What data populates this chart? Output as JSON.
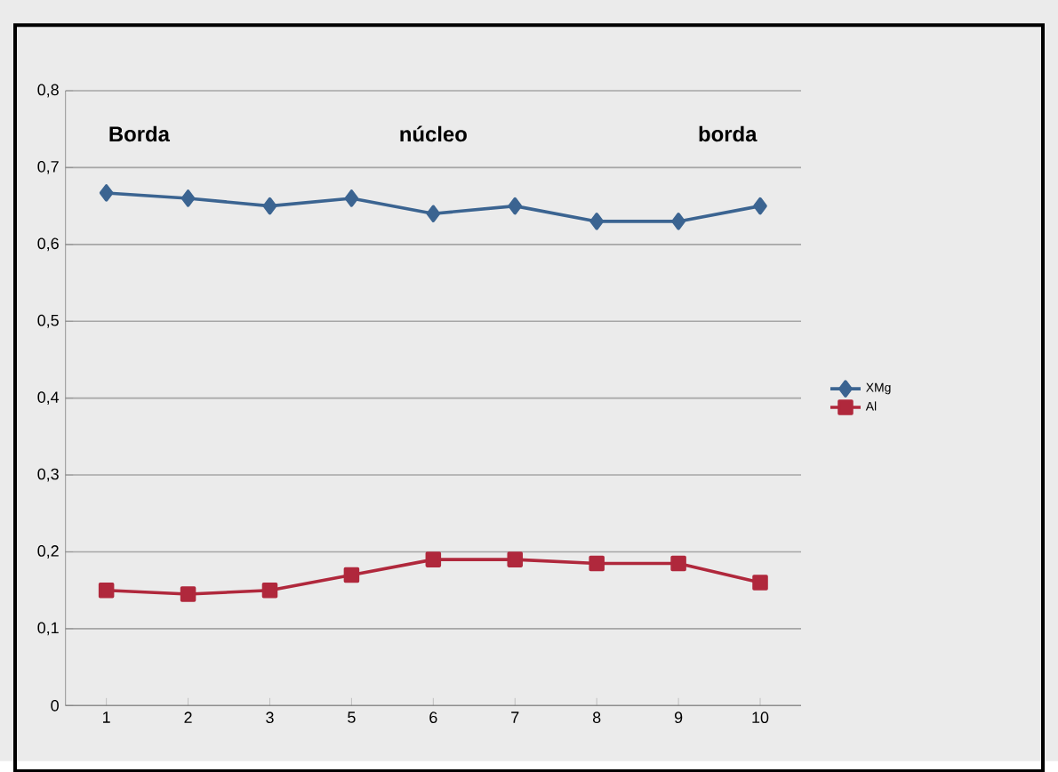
{
  "chart_data": {
    "type": "line",
    "categories": [
      "1",
      "2",
      "3",
      "5",
      "6",
      "7",
      "8",
      "9",
      "10"
    ],
    "series": [
      {
        "name": "XMg",
        "color": "#3b6491",
        "marker": "diamond",
        "values": [
          0.667,
          0.66,
          0.65,
          0.66,
          0.64,
          0.65,
          0.63,
          0.63,
          0.65
        ]
      },
      {
        "name": "Al",
        "color": "#b0283c",
        "marker": "square",
        "values": [
          0.15,
          0.145,
          0.15,
          0.17,
          0.19,
          0.19,
          0.185,
          0.185,
          0.16
        ]
      }
    ],
    "ylim": [
      0,
      0.8
    ],
    "yticks": [
      0,
      {
        "value": 0.1,
        "label": "0,1"
      },
      {
        "value": 0.2,
        "label": "0,2"
      },
      {
        "value": 0.3,
        "label": "0,3"
      },
      {
        "value": 0.4,
        "label": "0,4"
      },
      {
        "value": 0.5,
        "label": "0,5"
      },
      {
        "value": 0.6,
        "label": "0,6"
      },
      {
        "value": 0.7,
        "label": "0,7"
      },
      {
        "value": 0.8,
        "label": "0,8"
      }
    ],
    "annotations": [
      "Borda",
      "núcleo",
      "borda"
    ],
    "grid": "y",
    "legend": "right"
  }
}
